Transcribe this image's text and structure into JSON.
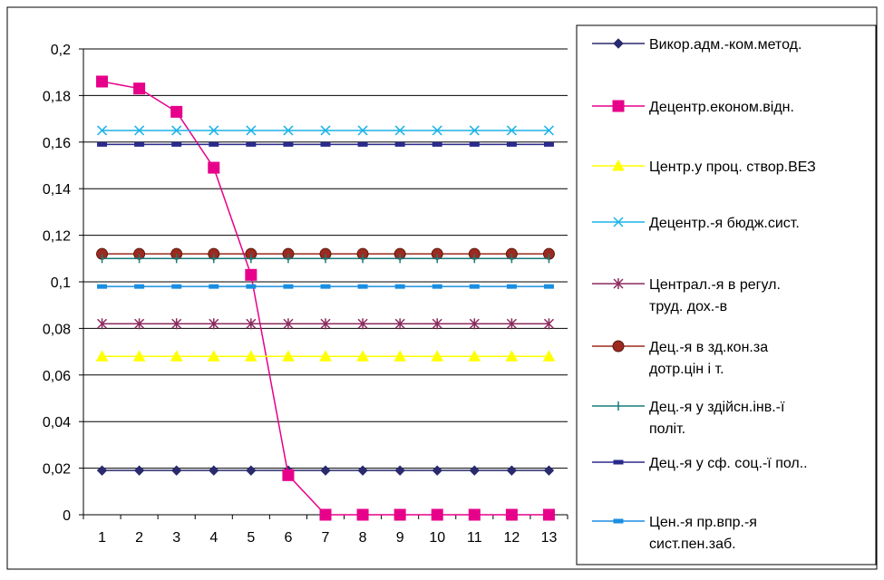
{
  "chart_data": {
    "type": "line",
    "x": [
      1,
      2,
      3,
      4,
      5,
      6,
      7,
      8,
      9,
      10,
      11,
      12,
      13
    ],
    "y_ticks": [
      "0",
      "0,02",
      "0,04",
      "0,06",
      "0,08",
      "0,1",
      "0,12",
      "0,14",
      "0,16",
      "0,18",
      "0,2"
    ],
    "ylim": [
      0,
      0.2
    ],
    "grid": "horizontal",
    "legend_placement": "right",
    "series": [
      {
        "name": "Викор.адм.-ком.метод.",
        "legend_lines": [
          "Викор.адм.-ком.метод."
        ],
        "color": "#2a2a6e",
        "marker": "diamond",
        "values": [
          0.019,
          0.019,
          0.019,
          0.019,
          0.019,
          0.019,
          0.019,
          0.019,
          0.019,
          0.019,
          0.019,
          0.019,
          0.019
        ]
      },
      {
        "name": "Децентр.економ.відн.",
        "legend_lines": [
          "Децентр.економ.відн."
        ],
        "color": "#e6008a",
        "marker": "square",
        "values": [
          0.186,
          0.183,
          0.173,
          0.149,
          0.103,
          0.017,
          0,
          0,
          0,
          0,
          0,
          0,
          0
        ]
      },
      {
        "name": "Центр.у проц. створ.ВЕЗ",
        "legend_lines": [
          "Центр.у проц. створ.ВЕЗ"
        ],
        "color": "#ffff00",
        "marker": "triangle",
        "values": [
          0.068,
          0.068,
          0.068,
          0.068,
          0.068,
          0.068,
          0.068,
          0.068,
          0.068,
          0.068,
          0.068,
          0.068,
          0.068
        ]
      },
      {
        "name": "Децентр.-я бюдж.сист.",
        "legend_lines": [
          "Децентр.-я бюдж.сист."
        ],
        "color": "#1ab2e8",
        "marker": "x",
        "values": [
          0.165,
          0.165,
          0.165,
          0.165,
          0.165,
          0.165,
          0.165,
          0.165,
          0.165,
          0.165,
          0.165,
          0.165,
          0.165
        ]
      },
      {
        "name": "Централ.-я в регул. труд. дох.-в",
        "legend_lines": [
          "Централ.-я в регул.",
          "труд. дох.-в"
        ],
        "color": "#8b2a5e",
        "marker": "star",
        "values": [
          0.082,
          0.082,
          0.082,
          0.082,
          0.082,
          0.082,
          0.082,
          0.082,
          0.082,
          0.082,
          0.082,
          0.082,
          0.082
        ]
      },
      {
        "name": "Дец.-я в зд.кон.за дотр.цін і т.",
        "legend_lines": [
          "Дец.-я в зд.кон.за",
          "дотр.цін і т."
        ],
        "color": "#9c2a1f",
        "marker": "circle",
        "values": [
          0.112,
          0.112,
          0.112,
          0.112,
          0.112,
          0.112,
          0.112,
          0.112,
          0.112,
          0.112,
          0.112,
          0.112,
          0.112
        ]
      },
      {
        "name": "Дец.-я у здійсн.інв.-ї політ.",
        "legend_lines": [
          "Дец.-я у здійсн.інв.-ї",
          "політ."
        ],
        "color": "#1a7a7a",
        "marker": "plus",
        "values": [
          0.11,
          0.11,
          0.11,
          0.11,
          0.11,
          0.11,
          0.11,
          0.11,
          0.11,
          0.11,
          0.11,
          0.11,
          0.11
        ]
      },
      {
        "name": "Дец.-я у сф. соц.-ї пол..",
        "legend_lines": [
          "Дец.-я у сф. соц.-ї пол.."
        ],
        "color": "#2a2a8c",
        "marker": "dash",
        "values": [
          0.159,
          0.159,
          0.159,
          0.159,
          0.159,
          0.159,
          0.159,
          0.159,
          0.159,
          0.159,
          0.159,
          0.159,
          0.159
        ]
      },
      {
        "name": "Цен.-я пр.впр.-я сист.пен.заб.",
        "legend_lines": [
          "Цен.-я пр.впр.-я",
          "сист.пен.заб."
        ],
        "color": "#1a8ee0",
        "marker": "dash",
        "values": [
          0.098,
          0.098,
          0.098,
          0.098,
          0.098,
          0.098,
          0.098,
          0.098,
          0.098,
          0.098,
          0.098,
          0.098,
          0.098
        ]
      }
    ]
  }
}
